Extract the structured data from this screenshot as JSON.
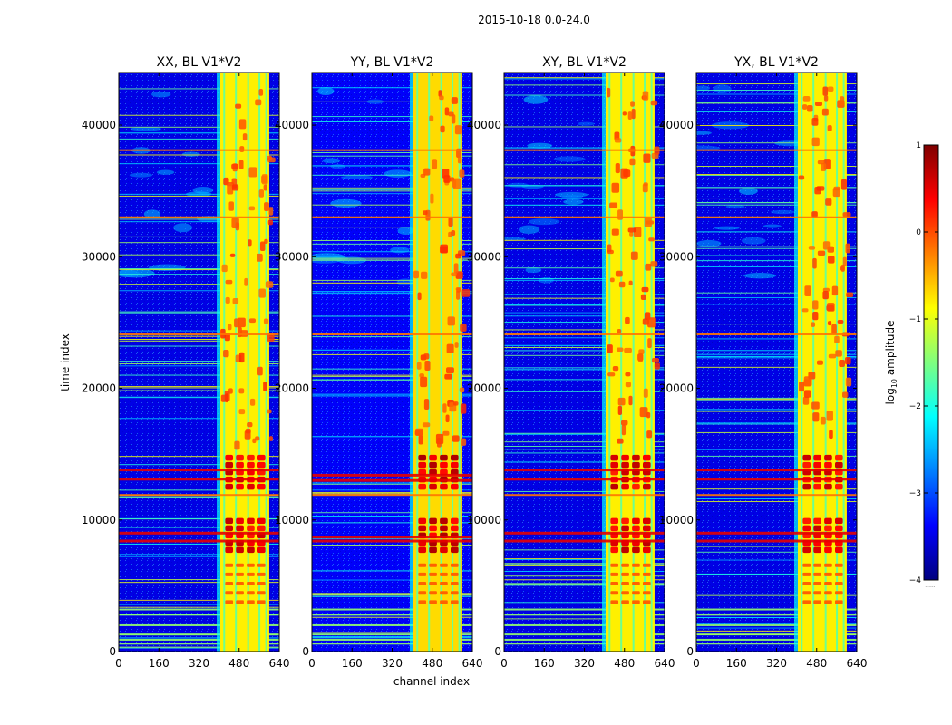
{
  "figure": {
    "suptitle": "2015-10-18 0.0-24.0"
  },
  "colormap": {
    "name": "jet",
    "stops": [
      "#00007f",
      "#0000ff",
      "#007fff",
      "#00ffff",
      "#7fff7f",
      "#ffff00",
      "#ff7f00",
      "#ff0000",
      "#7f0000"
    ]
  },
  "chart_data": [
    {
      "type": "heatmap",
      "title": "XX, BL V1*V2",
      "xlabel": "",
      "ylabel": "time index",
      "xlim": [
        0,
        640
      ],
      "ylim": [
        0,
        44000
      ],
      "xticks": [
        "0",
        "160",
        "320",
        "480",
        "640"
      ],
      "yticks": [
        "0",
        "10000",
        "20000",
        "30000",
        "40000"
      ],
      "rfi_band_channels": [
        405,
        600
      ],
      "strong_rows": [
        8400,
        9000,
        13100,
        13800,
        11900,
        24100,
        33000,
        38100
      ],
      "background_log10": -3.5,
      "band_log10": -0.8,
      "peak_log10": 0.7
    },
    {
      "type": "heatmap",
      "title": "YY, BL V1*V2",
      "xlabel": "channel index",
      "ylabel": "",
      "xlim": [
        0,
        640
      ],
      "ylim": [
        0,
        44000
      ],
      "xticks": [
        "0",
        "160",
        "320",
        "480",
        "640"
      ],
      "yticks": [
        "0",
        "10000",
        "20000",
        "30000",
        "40000"
      ],
      "rfi_band_channels": [
        405,
        600
      ],
      "strong_rows": [
        8400,
        8700,
        13000,
        13400,
        11900,
        24100,
        33000,
        38100
      ],
      "background_log10": -3.4,
      "band_log10": -0.7,
      "peak_log10": 0.8
    },
    {
      "type": "heatmap",
      "title": "XY, BL V1*V2",
      "xlabel": "",
      "ylabel": "",
      "xlim": [
        0,
        640
      ],
      "ylim": [
        0,
        44000
      ],
      "xticks": [
        "0",
        "160",
        "320",
        "480",
        "640"
      ],
      "yticks": [
        "0",
        "10000",
        "20000",
        "30000",
        "40000"
      ],
      "rfi_band_channels": [
        405,
        600
      ],
      "strong_rows": [
        8400,
        9000,
        13100,
        13800,
        11900,
        24100,
        33000,
        38100
      ],
      "background_log10": -3.5,
      "band_log10": -0.8,
      "peak_log10": 0.7
    },
    {
      "type": "heatmap",
      "title": "YX, BL V1*V2",
      "xlabel": "",
      "ylabel": "",
      "xlim": [
        0,
        640
      ],
      "ylim": [
        0,
        44000
      ],
      "xticks": [
        "0",
        "160",
        "320",
        "480",
        "640"
      ],
      "yticks": [
        "0",
        "10000",
        "20000",
        "30000",
        "40000"
      ],
      "rfi_band_channels": [
        405,
        600
      ],
      "strong_rows": [
        8400,
        9000,
        13100,
        13800,
        11900,
        24100,
        33000,
        38100
      ],
      "background_log10": -3.5,
      "band_log10": -0.8,
      "peak_log10": 0.7
    }
  ],
  "colorbar": {
    "label_prefix": "log",
    "label_sub": "10",
    "label_suffix": " amplitude",
    "range": [
      -4,
      1
    ],
    "ticks": [
      "1",
      "0",
      "−1",
      "−2",
      "−3",
      "−4"
    ],
    "footnote": "......"
  }
}
